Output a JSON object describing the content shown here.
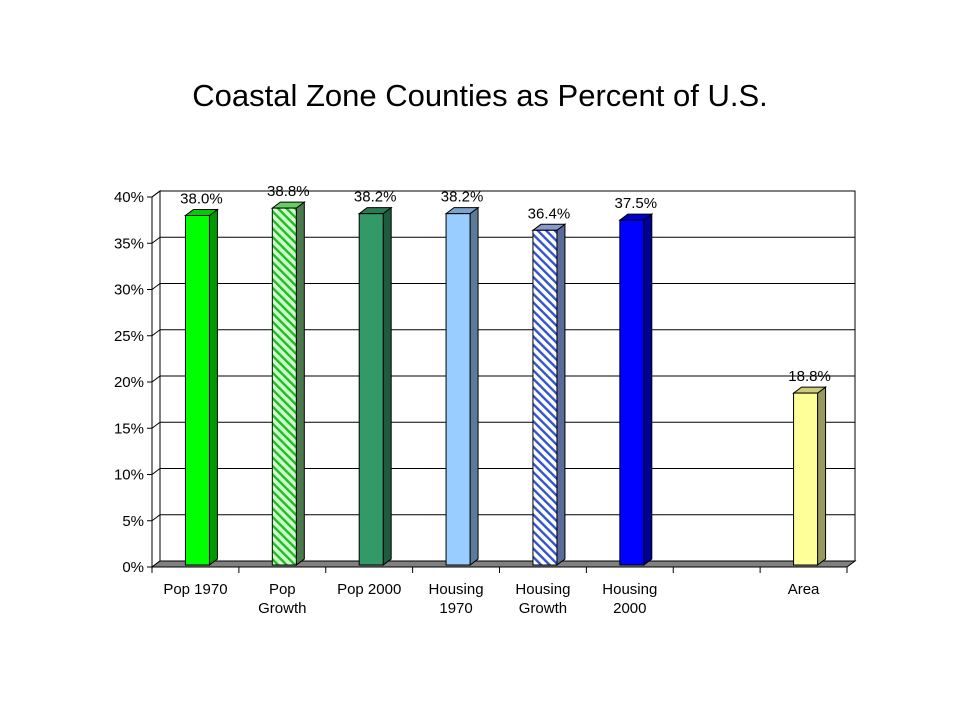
{
  "page": {
    "title": "Coastal Zone Counties as Percent of U.S."
  },
  "chart_data": {
    "type": "bar",
    "title": "Coastal Zone Counties as Percent of U.S.",
    "categories": [
      [
        "Pop 1970"
      ],
      [
        "Pop",
        "Growth"
      ],
      [
        "Pop 2000"
      ],
      [
        "Housing",
        "1970"
      ],
      [
        "Housing",
        "Growth"
      ],
      [
        "Housing",
        "2000"
      ],
      [
        ""
      ],
      [
        "Area"
      ]
    ],
    "values": [
      38.0,
      38.8,
      38.2,
      38.2,
      36.4,
      37.5,
      null,
      18.8
    ],
    "data_labels": [
      "38.0%",
      "38.8%",
      "38.2%",
      "38.2%",
      "36.4%",
      "37.5%",
      "",
      "18.8%"
    ],
    "bar_colors": [
      "#00ff00",
      "#ccffcc",
      "#339966",
      "#99ccff",
      "#ffffff",
      "#0000ff",
      "",
      "#ffff99"
    ],
    "bar_patterns": [
      "solid",
      "hatch-green",
      "solid",
      "solid",
      "hatch-blue",
      "solid",
      "none",
      "solid"
    ],
    "ylim": [
      0,
      40
    ],
    "yticks": [
      "0%",
      "5%",
      "10%",
      "15%",
      "20%",
      "25%",
      "30%",
      "35%",
      "40%"
    ],
    "grid": true,
    "xlabel": "",
    "ylabel": ""
  }
}
